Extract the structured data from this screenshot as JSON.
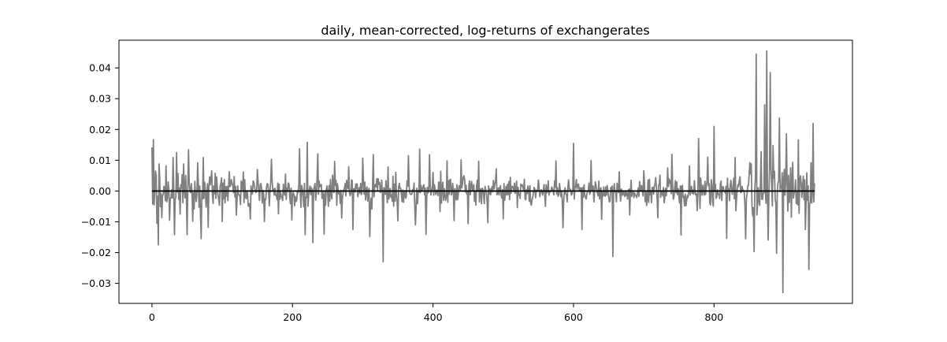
{
  "chart_data": {
    "type": "line",
    "title": "daily, mean-corrected, log-returns of exchangerates",
    "xlabel": "",
    "ylabel": "",
    "xlim": [
      -47,
      997
    ],
    "ylim": [
      -0.0365,
      0.049
    ],
    "x_ticks": [
      0,
      200,
      400,
      600,
      800
    ],
    "x_tick_labels": [
      "0",
      "200",
      "400",
      "600",
      "800"
    ],
    "y_ticks": [
      -0.03,
      -0.02,
      -0.01,
      0.0,
      0.01,
      0.02,
      0.03,
      0.04
    ],
    "y_tick_labels": [
      "−0.03",
      "−0.02",
      "−0.01",
      "0.00",
      "0.01",
      "0.02",
      "0.03",
      "0.04"
    ],
    "grid": false,
    "legend": "none",
    "series": [
      {
        "color": "#808080",
        "n_points": 944,
        "x_start": 0,
        "x_step": 1,
        "values_sample": [
          [
            0,
            0.0142
          ],
          [
            1,
            -0.0042
          ],
          [
            2,
            0.0167
          ],
          [
            3,
            -0.0045
          ],
          [
            5,
            0.0065
          ],
          [
            7,
            -0.0105
          ],
          [
            9,
            -0.0175
          ],
          [
            10,
            0.0088
          ],
          [
            14,
            -0.0087
          ],
          [
            20,
            0.0082
          ],
          [
            25,
            -0.0095
          ],
          [
            30,
            0.0109
          ],
          [
            32,
            -0.0142
          ],
          [
            35,
            0.0125
          ],
          [
            40,
            -0.0075
          ],
          [
            45,
            0.0088
          ],
          [
            50,
            -0.0142
          ],
          [
            52,
            0.0134
          ],
          [
            58,
            -0.0098
          ],
          [
            65,
            0.0092
          ],
          [
            70,
            -0.0155
          ],
          [
            73,
            0.0109
          ],
          [
            80,
            -0.0118
          ],
          [
            90,
            0.0058
          ],
          [
            100,
            -0.0099
          ],
          [
            110,
            0.0063
          ],
          [
            120,
            -0.0078
          ],
          [
            130,
            0.0062
          ],
          [
            140,
            -0.0091
          ],
          [
            150,
            0.007
          ],
          [
            160,
            -0.0099
          ],
          [
            170,
            0.0103
          ],
          [
            180,
            -0.0074
          ],
          [
            190,
            0.0055
          ],
          [
            199,
            -0.0094
          ],
          [
            210,
            0.0137
          ],
          [
            218,
            -0.0142
          ],
          [
            221,
            0.0158
          ],
          [
            229,
            -0.0168
          ],
          [
            236,
            0.0121
          ],
          [
            245,
            -0.014
          ],
          [
            260,
            0.0096
          ],
          [
            270,
            -0.0088
          ],
          [
            280,
            0.0079
          ],
          [
            286,
            -0.0125
          ],
          [
            300,
            0.0107
          ],
          [
            310,
            -0.0148
          ],
          [
            315,
            0.0118
          ],
          [
            329,
            -0.023
          ],
          [
            336,
            0.0078
          ],
          [
            350,
            -0.0097
          ],
          [
            365,
            0.0115
          ],
          [
            375,
            -0.011
          ],
          [
            381,
            0.0136
          ],
          [
            390,
            -0.0141
          ],
          [
            395,
            0.0118
          ],
          [
            410,
            -0.0067
          ],
          [
            420,
            0.0098
          ],
          [
            430,
            -0.0096
          ],
          [
            440,
            0.0101
          ],
          [
            450,
            -0.0106
          ],
          [
            465,
            0.0097
          ],
          [
            478,
            -0.0103
          ],
          [
            490,
            0.0072
          ],
          [
            500,
            -0.009
          ],
          [
            510,
            0.0045
          ],
          [
            520,
            -0.0054
          ],
          [
            530,
            0.0038
          ],
          [
            540,
            -0.0046
          ],
          [
            550,
            0.0036
          ],
          [
            560,
            -0.005
          ],
          [
            575,
            0.0098
          ],
          [
            585,
            -0.0119
          ],
          [
            600,
            0.0155
          ],
          [
            612,
            -0.0125
          ],
          [
            625,
            0.0099
          ],
          [
            640,
            -0.0092
          ],
          [
            656,
            -0.0213
          ],
          [
            665,
            0.0062
          ],
          [
            680,
            -0.0078
          ],
          [
            700,
            0.0066
          ],
          [
            720,
            -0.0087
          ],
          [
            740,
            0.0119
          ],
          [
            753,
            -0.0143
          ],
          [
            765,
            0.0082
          ],
          [
            778,
            0.0171
          ],
          [
            791,
            0.011
          ],
          [
            800,
            0.021
          ],
          [
            818,
            -0.0154
          ],
          [
            830,
            0.0109
          ],
          [
            845,
            -0.0155
          ],
          [
            857,
            -0.0197
          ],
          [
            860,
            0.0445
          ],
          [
            867,
            0.0128
          ],
          [
            872,
            0.028
          ],
          [
            875,
            0.0455
          ],
          [
            877,
            -0.0159
          ],
          [
            880,
            0.0385
          ],
          [
            884,
            0.0148
          ],
          [
            889,
            -0.0202
          ],
          [
            893,
            0.0237
          ],
          [
            898,
            -0.033
          ],
          [
            903,
            0.0186
          ],
          [
            910,
            -0.0085
          ],
          [
            920,
            0.0166
          ],
          [
            930,
            -0.0125
          ],
          [
            935,
            -0.0255
          ],
          [
            938,
            0.0092
          ],
          [
            941,
            0.022
          ]
        ]
      },
      {
        "color": "#000000",
        "x": [
          0,
          943
        ],
        "values": [
          0.0,
          0.0
        ]
      }
    ]
  }
}
